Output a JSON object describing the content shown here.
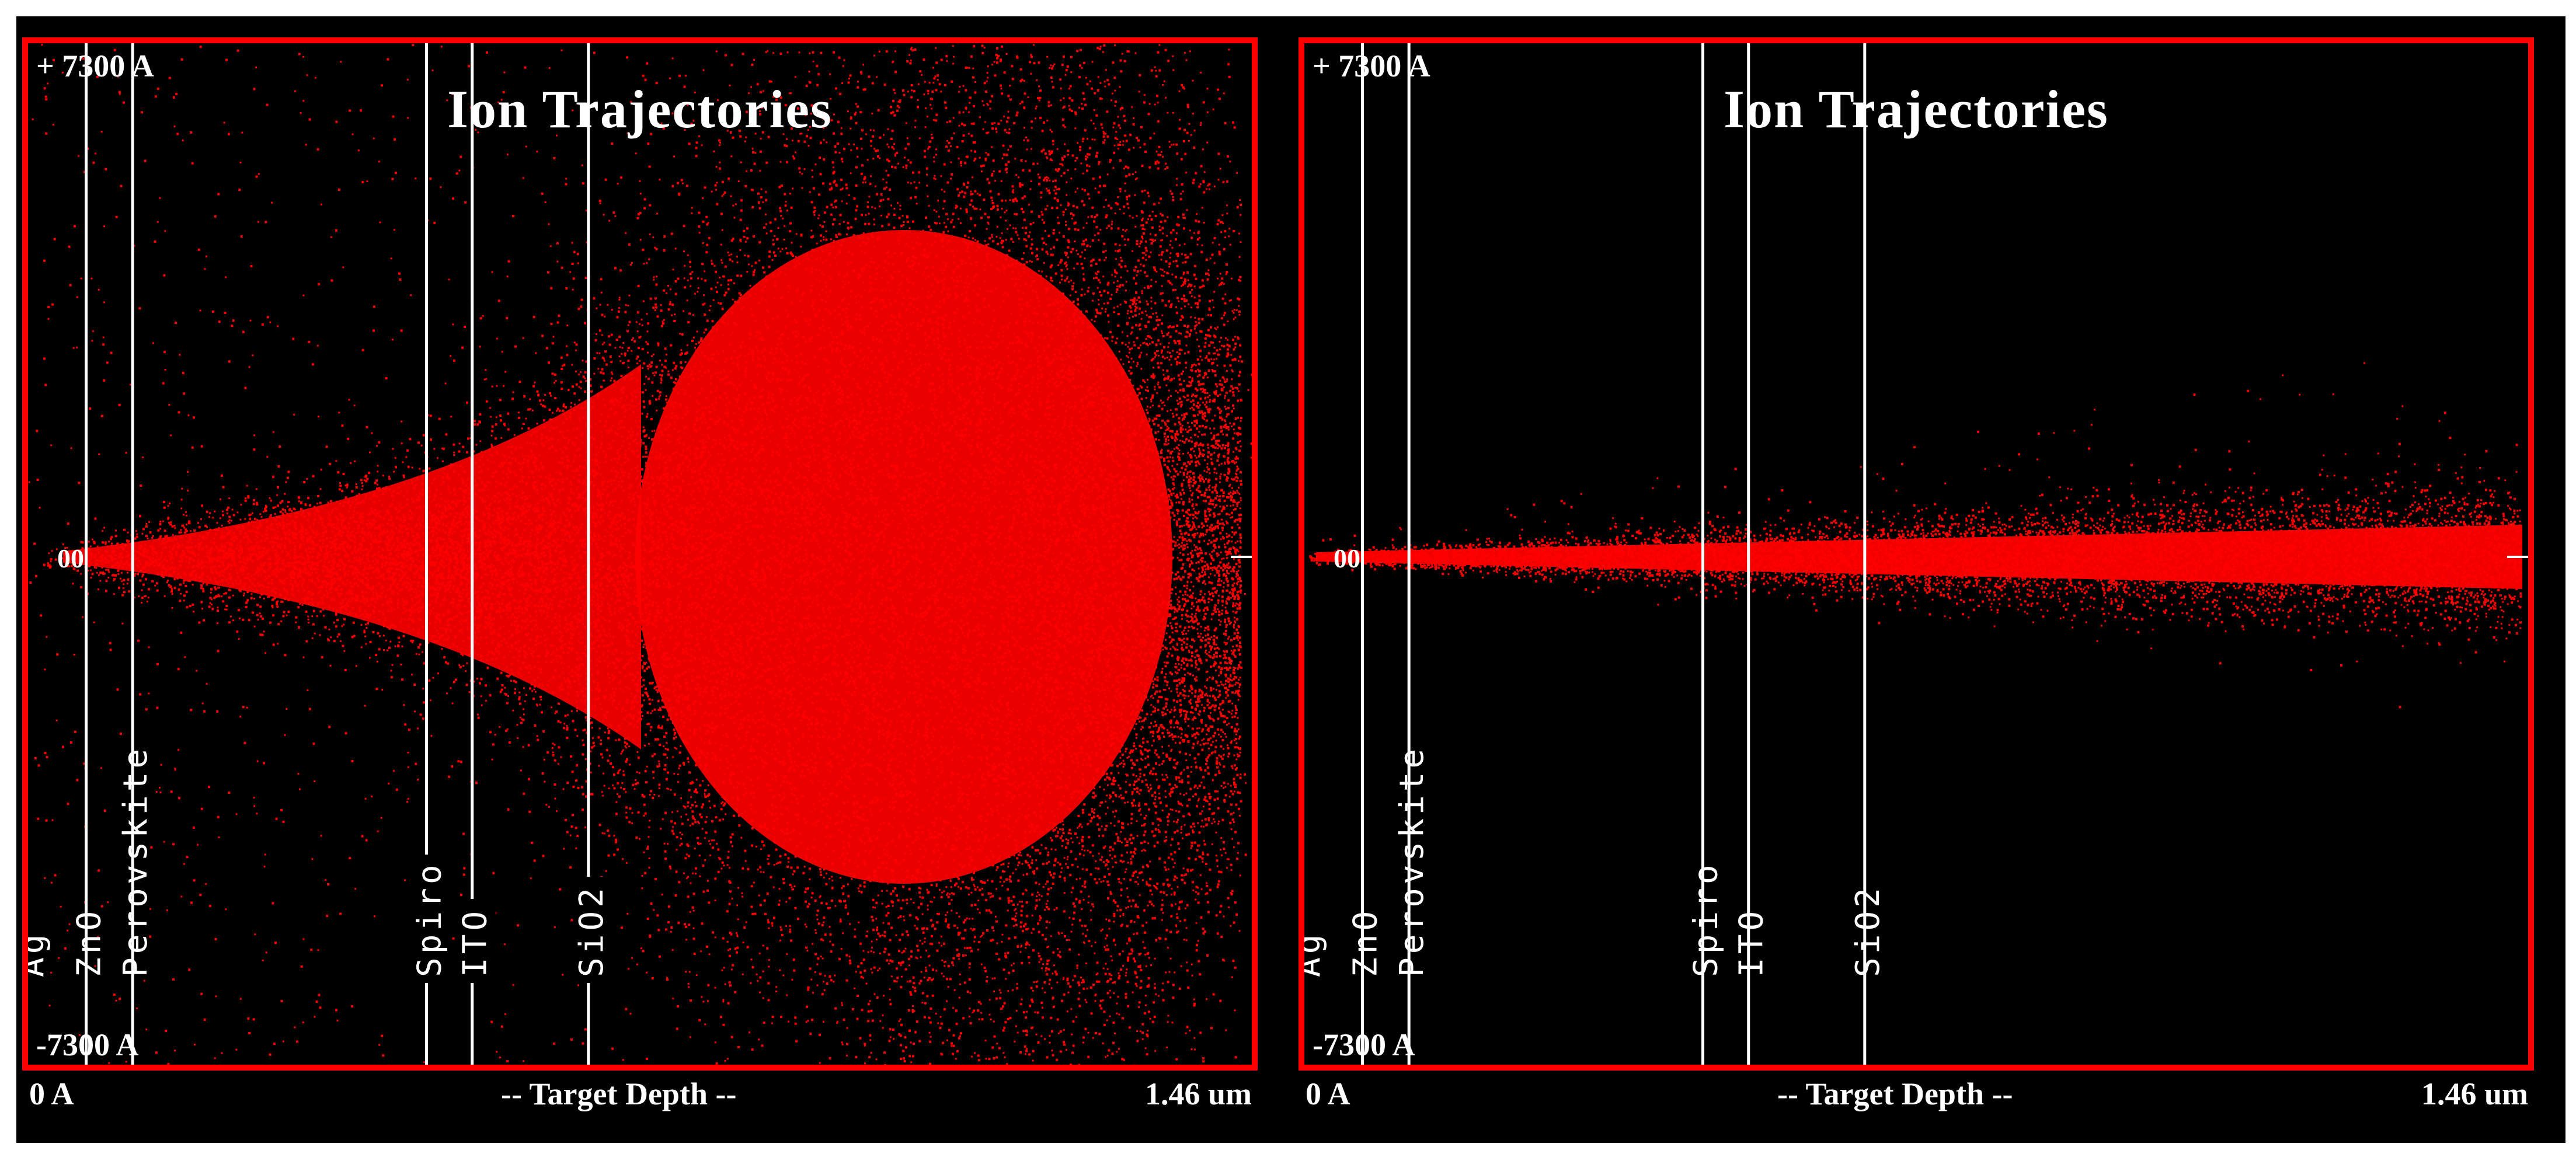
{
  "colors": {
    "background": "#000000",
    "frame": "#ff0000",
    "ions": "#ff0000",
    "text": "#ffffff"
  },
  "panels": [
    {
      "title": "Ion Trajectories",
      "y_top_label": "+ 7300 A",
      "y_bottom_label": "-7300 A",
      "x_start_label": "0 A",
      "x_mid_label": "-- Target Depth --",
      "x_end_label": "1.46 um",
      "spread": "wide"
    },
    {
      "title": "Ion Trajectories",
      "y_top_label": "+ 7300 A",
      "y_bottom_label": "-7300 A",
      "x_start_label": "0 A",
      "x_mid_label": "-- Target Depth --",
      "x_end_label": "1.46 um",
      "spread": "narrow"
    }
  ],
  "chart_data": [
    {
      "type": "scatter",
      "title": "Ion Trajectories",
      "xlabel": "-- Target Depth --",
      "xlim": [
        "0 A",
        "1.46 um"
      ],
      "ylim": [
        "-7300 A",
        "+ 7300 A"
      ],
      "layers": [
        "Ag",
        "ZnO",
        "Perovskite",
        "Spiro",
        "ITO",
        "SiO2"
      ],
      "layer_boundaries_um": [
        0.07,
        0.126,
        0.48,
        0.535,
        0.675
      ],
      "description_series": [
        {
          "name": "",
          "values": []
        }
      ]
    },
    {
      "type": "scatter",
      "title": "Ion Trajectories",
      "xlabel": "-- Target Depth --",
      "xlim": [
        "0 A",
        "1.46 um"
      ],
      "ylim": [
        "-7300 A",
        "+ 7300 A"
      ],
      "layers": [
        "Ag",
        "ZnO",
        "Perovskite",
        "Spiro",
        "ITO",
        "SiO2"
      ],
      "layer_boundaries_um": [
        0.07,
        0.126,
        0.48,
        0.535,
        0.675
      ]
    }
  ]
}
